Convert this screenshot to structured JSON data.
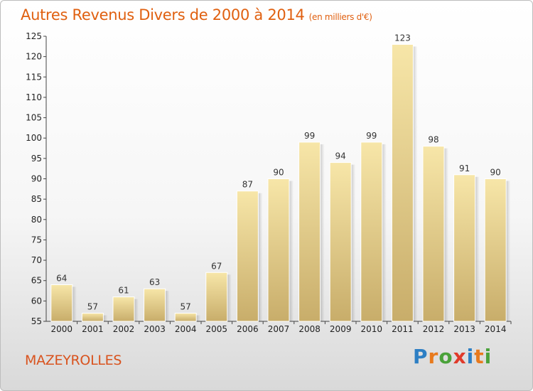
{
  "chart_data": {
    "type": "bar",
    "title": "Autres Revenus Divers de 2000 à 2014",
    "unit_note": "(en milliers d'€)",
    "categories": [
      "2000",
      "2001",
      "2002",
      "2003",
      "2004",
      "2005",
      "2006",
      "2007",
      "2008",
      "2009",
      "2010",
      "2011",
      "2012",
      "2013",
      "2014"
    ],
    "values": [
      64,
      57,
      61,
      63,
      57,
      67,
      87,
      90,
      99,
      94,
      99,
      123,
      98,
      91,
      90
    ],
    "ylim": [
      55,
      125
    ],
    "yticks": [
      55,
      60,
      65,
      70,
      75,
      80,
      85,
      90,
      95,
      100,
      105,
      110,
      115,
      120,
      125
    ],
    "grid": false,
    "bar_color": "#e8cf88"
  },
  "footer": {
    "city": "MAZEYROLLES"
  },
  "logo": {
    "letters": [
      "P",
      "r",
      "o",
      "x",
      "i",
      "t",
      "i"
    ],
    "colors": [
      "#2d7fc4",
      "#e87a1d",
      "#4aa23a",
      "#e03a2a",
      "#2d7fc4",
      "#e87a1d",
      "#4aa23a"
    ]
  }
}
